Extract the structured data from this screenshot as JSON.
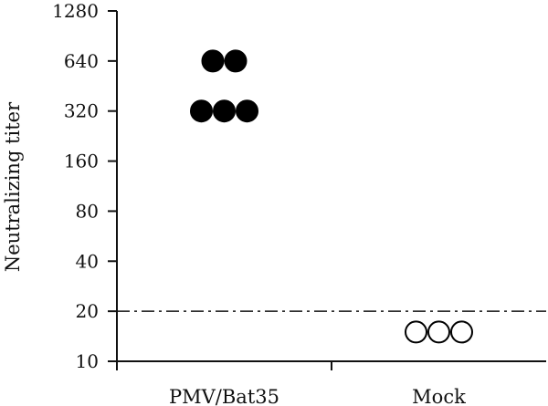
{
  "chart_data": {
    "type": "scatter",
    "ylabel": "Neutralizing titer",
    "y_scale": "log2",
    "ylim": [
      10,
      1280
    ],
    "y_ticks": [
      "1280",
      "640",
      "320",
      "160",
      "80",
      "40",
      "20",
      "10"
    ],
    "categories": [
      "PMV/Bat35",
      "Mock"
    ],
    "threshold": 20,
    "series": [
      {
        "category": "PMV/Bat35",
        "filled": true,
        "color": "#000000",
        "points": [
          320,
          320,
          320,
          640,
          640
        ]
      },
      {
        "category": "Mock",
        "filled": false,
        "color": "#000000",
        "points": [
          15,
          15,
          15
        ]
      }
    ]
  }
}
